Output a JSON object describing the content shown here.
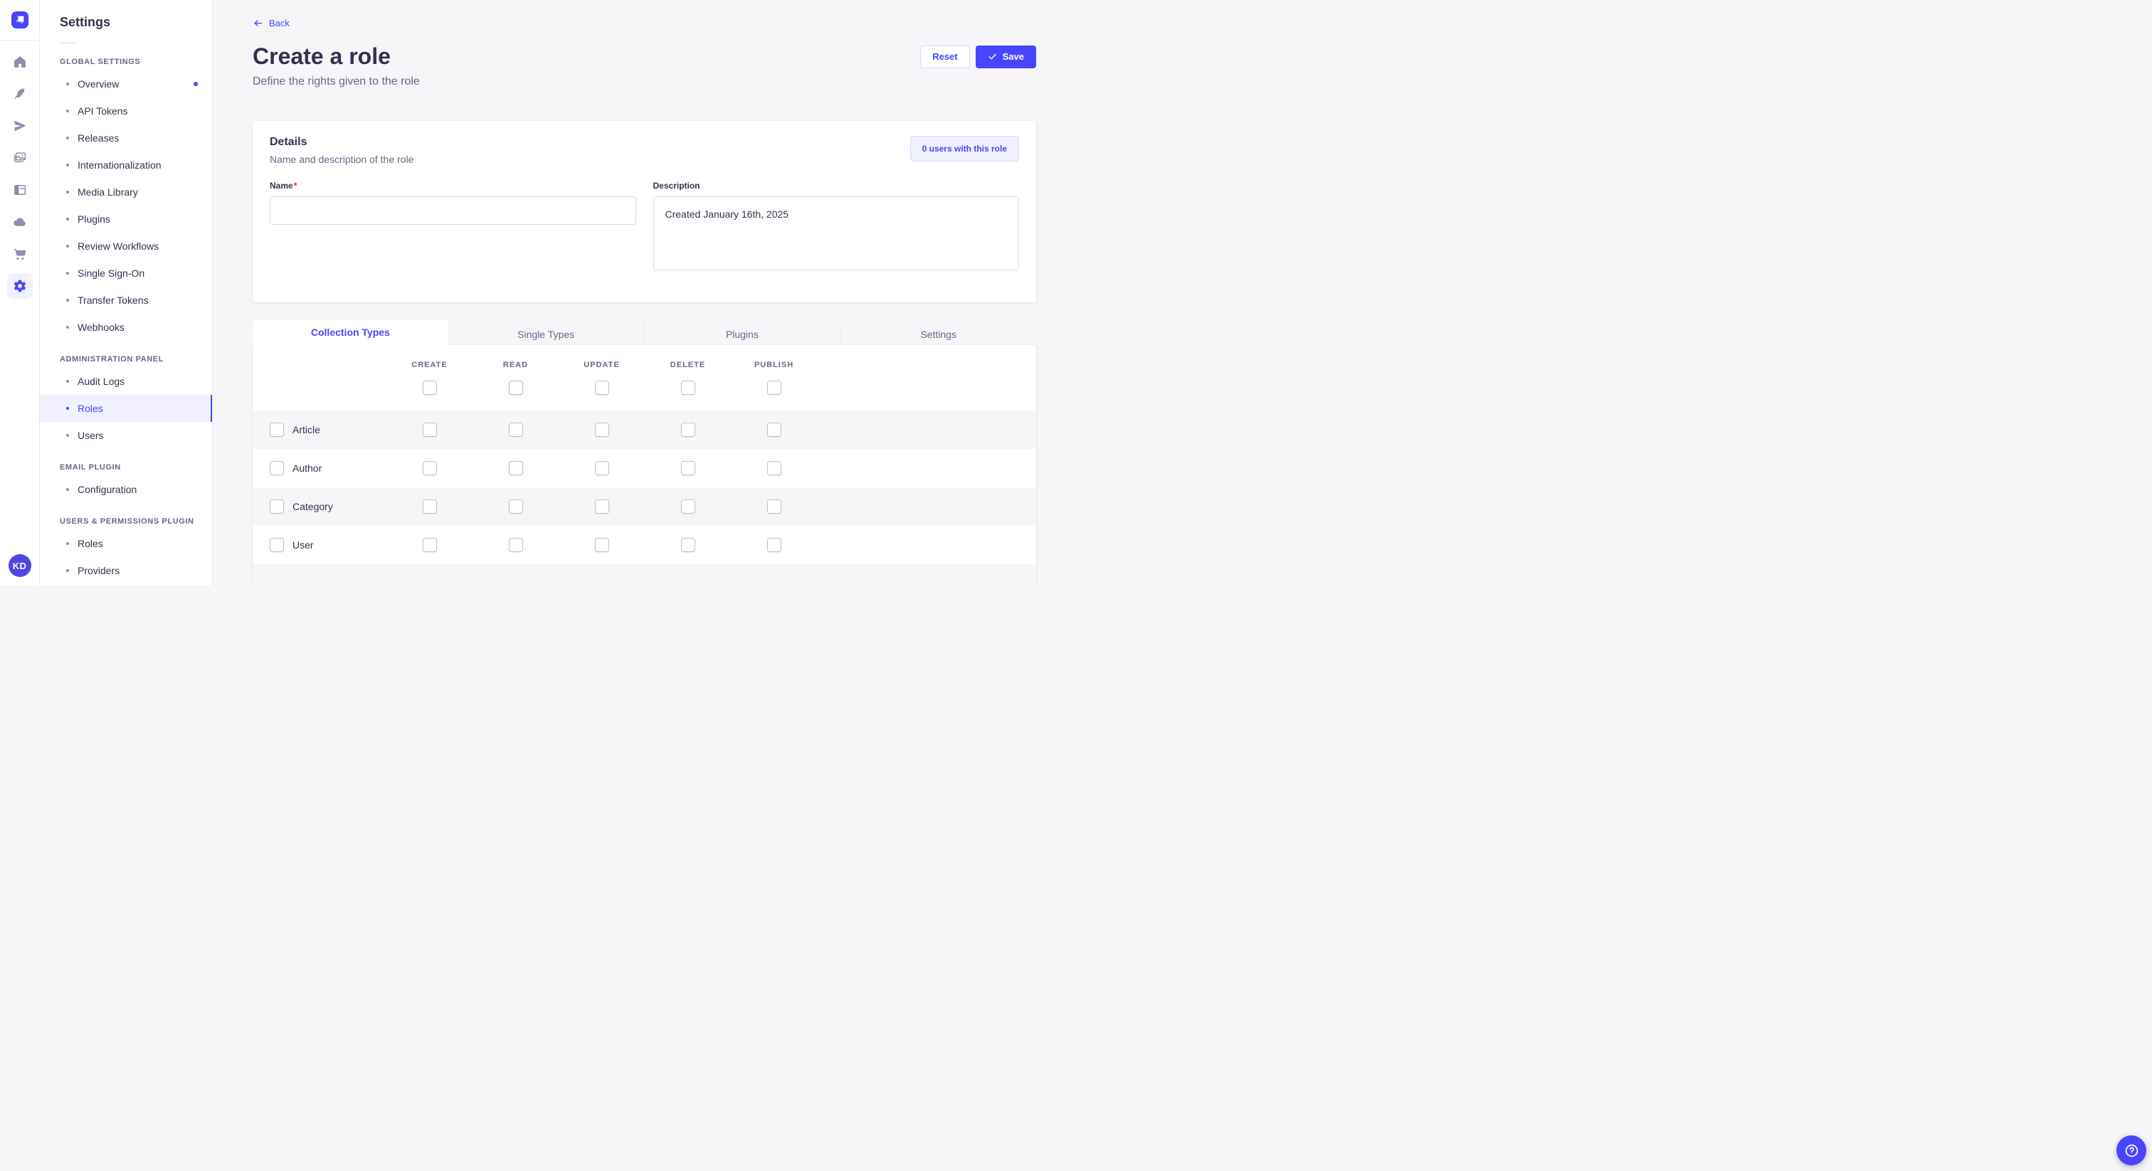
{
  "colors": {
    "primary": "#4945ff",
    "primary_light_bg": "#f0f0ff",
    "primary_border": "#d9d8ff",
    "page_bg": "#f6f6f9",
    "text_dark": "#32324d",
    "text_muted": "#666687",
    "icon_gray": "#8e8ea9",
    "required_red": "#d02b20"
  },
  "nav_rail": {
    "logo_icon": "strapi-logo",
    "icons": [
      {
        "name": "home"
      },
      {
        "name": "content-manager"
      },
      {
        "name": "releases"
      },
      {
        "name": "media-library"
      },
      {
        "name": "content-type-builder"
      },
      {
        "name": "cloud"
      },
      {
        "name": "marketplace"
      },
      {
        "name": "settings",
        "active": true
      }
    ],
    "avatar_initials": "KD"
  },
  "sidebar": {
    "title": "Settings",
    "sections": [
      {
        "label": "GLOBAL SETTINGS",
        "items": [
          {
            "label": "Overview",
            "notification": true
          },
          {
            "label": "API Tokens"
          },
          {
            "label": "Releases"
          },
          {
            "label": "Internationalization"
          },
          {
            "label": "Media Library"
          },
          {
            "label": "Plugins"
          },
          {
            "label": "Review Workflows"
          },
          {
            "label": "Single Sign-On"
          },
          {
            "label": "Transfer Tokens"
          },
          {
            "label": "Webhooks"
          }
        ]
      },
      {
        "label": "ADMINISTRATION PANEL",
        "items": [
          {
            "label": "Audit Logs"
          },
          {
            "label": "Roles",
            "active": true
          },
          {
            "label": "Users"
          }
        ]
      },
      {
        "label": "EMAIL PLUGIN",
        "items": [
          {
            "label": "Configuration"
          }
        ]
      },
      {
        "label": "USERS & PERMISSIONS PLUGIN",
        "items": [
          {
            "label": "Roles"
          },
          {
            "label": "Providers"
          }
        ]
      }
    ]
  },
  "header": {
    "back_label": "Back",
    "title": "Create a role",
    "subtitle": "Define the rights given to the role",
    "reset_label": "Reset",
    "save_label": "Save",
    "save_icon": "check-icon"
  },
  "details_card": {
    "title": "Details",
    "subtitle": "Name and description of the role",
    "users_button_label": "0 users with this role",
    "name_label": "Name",
    "name_required_mark": "*",
    "name_value": "",
    "description_label": "Description",
    "description_value": "Created January 16th, 2025"
  },
  "permissions": {
    "tabs": [
      {
        "label": "Collection Types",
        "active": true
      },
      {
        "label": "Single Types"
      },
      {
        "label": "Plugins"
      },
      {
        "label": "Settings"
      }
    ],
    "columns": [
      "CREATE",
      "READ",
      "UPDATE",
      "DELETE",
      "PUBLISH"
    ],
    "rows": [
      {
        "label": "Article",
        "checked": [
          false,
          false,
          false,
          false,
          false
        ]
      },
      {
        "label": "Author",
        "checked": [
          false,
          false,
          false,
          false,
          false
        ]
      },
      {
        "label": "Category",
        "checked": [
          false,
          false,
          false,
          false,
          false
        ]
      },
      {
        "label": "User",
        "checked": [
          false,
          false,
          false,
          false,
          false
        ]
      }
    ]
  },
  "help_button": {
    "icon": "question-mark-icon"
  }
}
